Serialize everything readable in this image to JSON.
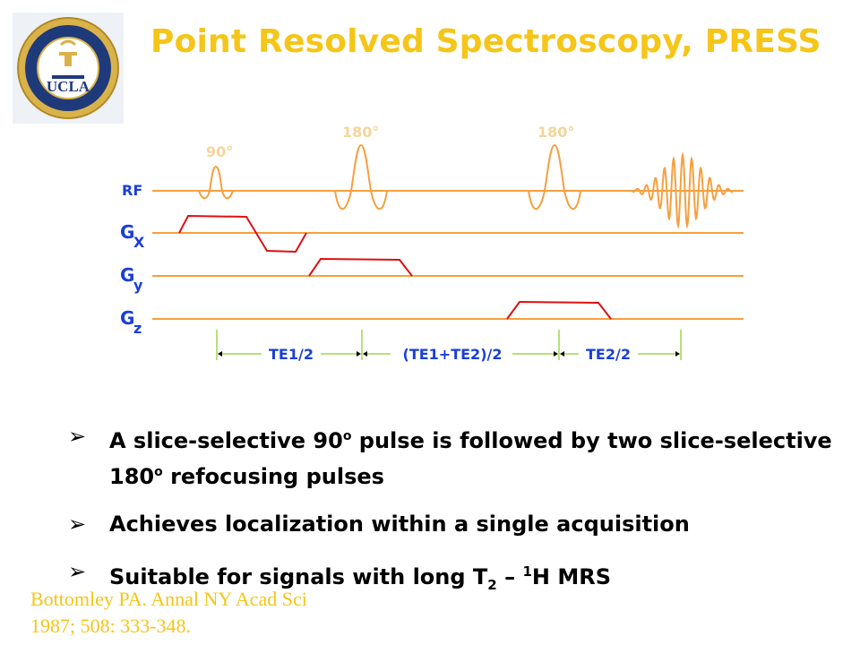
{
  "header": {
    "title": "Point Resolved Spectroscopy, PRESS",
    "logo_text": "UCLA",
    "logo_ring_text": "DAVID GEFFEN SCHOOL OF MEDICINE"
  },
  "diagram": {
    "pulse_labels": {
      "p90": "90°",
      "p180a": "180°",
      "p180b": "180°"
    },
    "rows": {
      "rf": "RF",
      "gx": "G",
      "gx_sub": "X",
      "gy": "G",
      "gy_sub": "y",
      "gz": "G",
      "gz_sub": "z"
    },
    "intervals": {
      "te1_half": "TE1/2",
      "te_sum_half": "(TE1+TE2)/2",
      "te2_half": "TE2/2"
    },
    "colors": {
      "line": "#f5a040",
      "gradient": "#dd1111",
      "label": "#1a3fd6",
      "marker": "#b8e07a",
      "faint": "#f5d49a"
    }
  },
  "bullets": {
    "arrow": "➢",
    "b1": {
      "a": "A slice-selective 90",
      "sup1": "o",
      "b": " pulse is followed by two slice-selective 180",
      "sup2": "o",
      "c": " refocusing pulses"
    },
    "b2": "Achieves localization within a single acquisition",
    "b3": {
      "a": "Suitable for signals with long T",
      "sub": "2",
      "b": " – ",
      "sup": "1",
      "c": "H MRS"
    }
  },
  "citation": {
    "line1": "Bottomley PA. Annal NY Acad Sci",
    "line2": "1987; 508: 333-348."
  }
}
